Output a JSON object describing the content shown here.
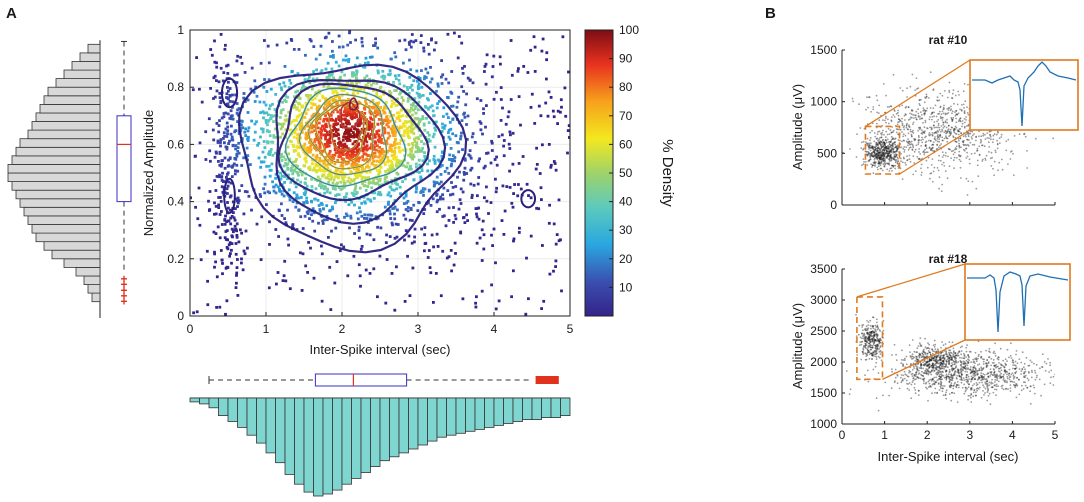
{
  "panels": {
    "a_label": "A",
    "b_label": "B"
  },
  "chart_data": [
    {
      "id": "density",
      "type": "scatter",
      "title": "",
      "xlabel": "Inter-Spike interval (sec)",
      "ylabel": "Normalized Amplitude",
      "xlim": [
        0,
        5
      ],
      "ylim": [
        0,
        1
      ],
      "xticks": [
        "0",
        "1",
        "2",
        "3",
        "4",
        "5"
      ],
      "yticks": [
        "0",
        "0.2",
        "0.4",
        "0.6",
        "0.8",
        "1"
      ],
      "colorbar": {
        "label": "% Density",
        "ticks": [
          "10",
          "20",
          "30",
          "40",
          "50",
          "60",
          "70",
          "80",
          "90",
          "100"
        ],
        "range": [
          0,
          100
        ]
      },
      "contours": [
        {
          "level": 10,
          "cx": 2.1,
          "cy": 0.57,
          "rx": 1.45,
          "ry": 0.32
        },
        {
          "level": 20,
          "cx": 2.15,
          "cy": 0.59,
          "rx": 1.1,
          "ry": 0.25
        },
        {
          "level": 30,
          "cx": 2.1,
          "cy": 0.61,
          "rx": 0.95,
          "ry": 0.2
        },
        {
          "level": 40,
          "cx": 2.05,
          "cy": 0.62,
          "rx": 0.75,
          "ry": 0.17
        },
        {
          "level": 50,
          "cx": 2.05,
          "cy": 0.63,
          "rx": 0.55,
          "ry": 0.14
        },
        {
          "level": 60,
          "cx": 2.03,
          "cy": 0.635,
          "rx": 0.42,
          "ry": 0.12
        },
        {
          "level": 70,
          "cx": 2.0,
          "cy": 0.64,
          "rx": 0.32,
          "ry": 0.1
        },
        {
          "level": 80,
          "cx": 2.05,
          "cy": 0.66,
          "rx": 0.22,
          "ry": 0.08
        },
        {
          "level": 90,
          "cx": 2.1,
          "cy": 0.7,
          "rx": 0.12,
          "ry": 0.045
        },
        {
          "level": 100,
          "cx": 2.15,
          "cy": 0.74,
          "rx": 0.05,
          "ry": 0.02
        }
      ],
      "scatter_center": {
        "x": 2.1,
        "y": 0.6
      },
      "n_points": 3000
    },
    {
      "id": "amplitude_marginal",
      "type": "bar",
      "orientation": "horizontal",
      "bin_edges": [
        0.05,
        0.95
      ],
      "values": [
        2,
        3,
        4,
        6,
        9,
        12,
        14,
        16,
        17,
        18,
        19,
        20,
        21,
        22,
        23,
        23,
        22,
        21,
        20,
        18,
        17,
        16,
        15,
        14,
        13,
        11,
        9,
        7,
        5,
        3
      ],
      "box": {
        "min": 0.15,
        "q1": 0.4,
        "median": 0.6,
        "q3": 0.7,
        "max": 0.96,
        "outliers": [
          0.05,
          0.07,
          0.09,
          0.11,
          0.13
        ]
      }
    },
    {
      "id": "isi_marginal",
      "type": "bar",
      "orientation": "vertical",
      "bin_edges": [
        0,
        5
      ],
      "values": [
        2,
        3,
        5,
        9,
        12,
        15,
        19,
        23,
        28,
        33,
        39,
        44,
        48,
        50,
        49,
        47,
        44,
        41,
        38,
        35,
        32,
        30,
        28,
        26,
        24,
        22,
        20,
        19,
        18,
        17,
        16,
        15,
        14,
        13,
        12,
        11,
        11,
        10,
        10,
        9
      ],
      "box": {
        "min": 0.25,
        "q1": 1.65,
        "median": 2.15,
        "q3": 2.85,
        "max": 4.5,
        "outliers": [
          4.6,
          4.7,
          4.8
        ]
      }
    },
    {
      "id": "rat10",
      "type": "scatter",
      "title": "rat #10",
      "xlabel": "",
      "ylabel": "Amplitude (μV)",
      "xlim": [
        0,
        5
      ],
      "ylim": [
        0,
        1500
      ],
      "yticks": [
        "0",
        "500",
        "1000",
        "1500"
      ],
      "clusters": [
        {
          "cx": 0.95,
          "cy": 500,
          "sx": 0.22,
          "sy": 70,
          "n": 500
        },
        {
          "cx": 2.3,
          "cy": 700,
          "sx": 0.9,
          "sy": 200,
          "n": 900
        }
      ],
      "highlight_box": {
        "x0": 0.55,
        "x1": 1.35,
        "y0": 300,
        "y1": 760
      }
    },
    {
      "id": "rat18",
      "type": "scatter",
      "title": "rat #18",
      "xlabel": "Inter-Spike interval (sec)",
      "ylabel": "Amplitude (μV)",
      "xlim": [
        0,
        5
      ],
      "ylim": [
        1000,
        3500
      ],
      "xticks": [
        "0",
        "1",
        "2",
        "3",
        "4",
        "5"
      ],
      "yticks": [
        "1000",
        "1500",
        "2000",
        "2500",
        "3000",
        "3500"
      ],
      "clusters": [
        {
          "cx": 0.7,
          "cy": 2350,
          "sx": 0.13,
          "sy": 150,
          "n": 300
        },
        {
          "cx": 2.2,
          "cy": 2050,
          "sx": 0.35,
          "sy": 120,
          "n": 400
        },
        {
          "cx": 3.0,
          "cy": 1800,
          "sx": 0.9,
          "sy": 180,
          "n": 900
        }
      ],
      "highlight_box": {
        "x0": 0.35,
        "x1": 0.95,
        "y0": 1720,
        "y1": 3050
      }
    }
  ]
}
